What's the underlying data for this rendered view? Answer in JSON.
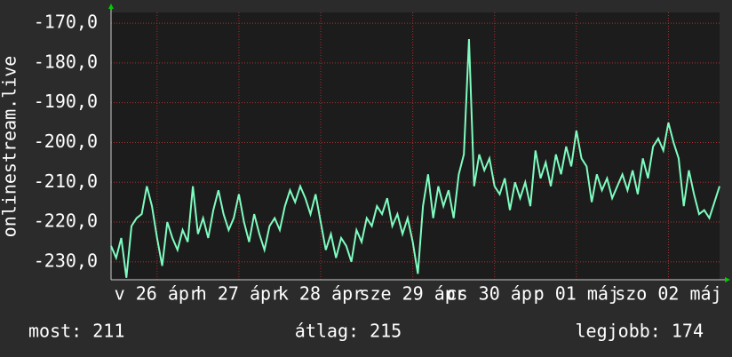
{
  "chart_data": {
    "type": "line",
    "y_label": "onlinestream.live",
    "categories": [
      null,
      null,
      null,
      null,
      null,
      null,
      null,
      null,
      null,
      "v 26 ápr",
      null,
      null,
      null,
      null,
      null,
      null,
      null,
      null,
      null,
      null,
      null,
      null,
      null,
      null,
      null,
      "h 27 ápr",
      null,
      null,
      null,
      null,
      null,
      null,
      null,
      null,
      null,
      null,
      null,
      null,
      null,
      null,
      null,
      "k 28 ápr",
      null,
      null,
      null,
      null,
      null,
      null,
      null,
      null,
      null,
      null,
      null,
      null,
      null,
      null,
      null,
      null,
      null,
      "sze 29 ápr",
      null,
      null,
      null,
      null,
      null,
      null,
      null,
      null,
      null,
      null,
      null,
      null,
      null,
      null,
      null,
      "cs 30 ápr",
      null,
      null,
      null,
      null,
      null,
      null,
      null,
      null,
      null,
      null,
      null,
      null,
      null,
      null,
      null,
      "p 01 máj",
      null,
      null,
      null,
      null,
      null,
      null,
      null,
      null,
      null,
      null,
      null,
      null,
      null,
      null,
      null,
      null,
      null,
      "szo 02 máj",
      null,
      null,
      null,
      null,
      null,
      null,
      null,
      null,
      null,
      null
    ],
    "series": [
      {
        "color": "#7ffcc0",
        "values": [
          -226,
          -229,
          -224,
          -234,
          -221,
          -219,
          -218,
          -211,
          -216,
          -224,
          -231,
          -220,
          -224,
          -227,
          -222,
          -225,
          -211,
          -223,
          -219,
          -224,
          -217,
          -212,
          -218,
          -222,
          -219,
          -213,
          -220,
          -225,
          -218,
          -223,
          -227,
          -221,
          -219,
          -222,
          -216,
          -212,
          -215,
          -211,
          -214,
          -218,
          -213,
          -220,
          -227,
          -223,
          -229,
          -224,
          -226,
          -230,
          -222,
          -225,
          -219,
          -221,
          -216,
          -218,
          -214,
          -221,
          -218,
          -223,
          -219,
          -225,
          -233,
          -216,
          -208,
          -219,
          -211,
          -216,
          -212,
          -219,
          -208,
          -203,
          -174,
          -211,
          -203,
          -207,
          -204,
          -211,
          -213,
          -209,
          -217,
          -210,
          -214,
          -210,
          -216,
          -202,
          -209,
          -205,
          -211,
          -203,
          -208,
          -201,
          -206,
          -197,
          -204,
          -206,
          -215,
          -208,
          -212,
          -209,
          -214,
          -211,
          -208,
          -212,
          -207,
          -213,
          -204,
          -209,
          -201,
          -199,
          -202,
          -195,
          -200,
          -204,
          -216,
          -207,
          -213,
          -218,
          -217,
          -219,
          -215,
          -211
        ]
      }
    ],
    "ylim": [
      -234.5,
      -167.3
    ],
    "yticks": [
      {
        "value": -230,
        "label": "-230,0"
      },
      {
        "value": -220,
        "label": "-220,0"
      },
      {
        "value": -210,
        "label": "-210,0"
      },
      {
        "value": -200,
        "label": "-200,0"
      },
      {
        "value": -190,
        "label": "-190,0"
      },
      {
        "value": -180,
        "label": "-180,0"
      },
      {
        "value": -170,
        "label": "-170,0"
      }
    ],
    "grid": true,
    "footer": [
      "most: 211",
      "átlag: 215",
      "legjobb: 174"
    ]
  }
}
